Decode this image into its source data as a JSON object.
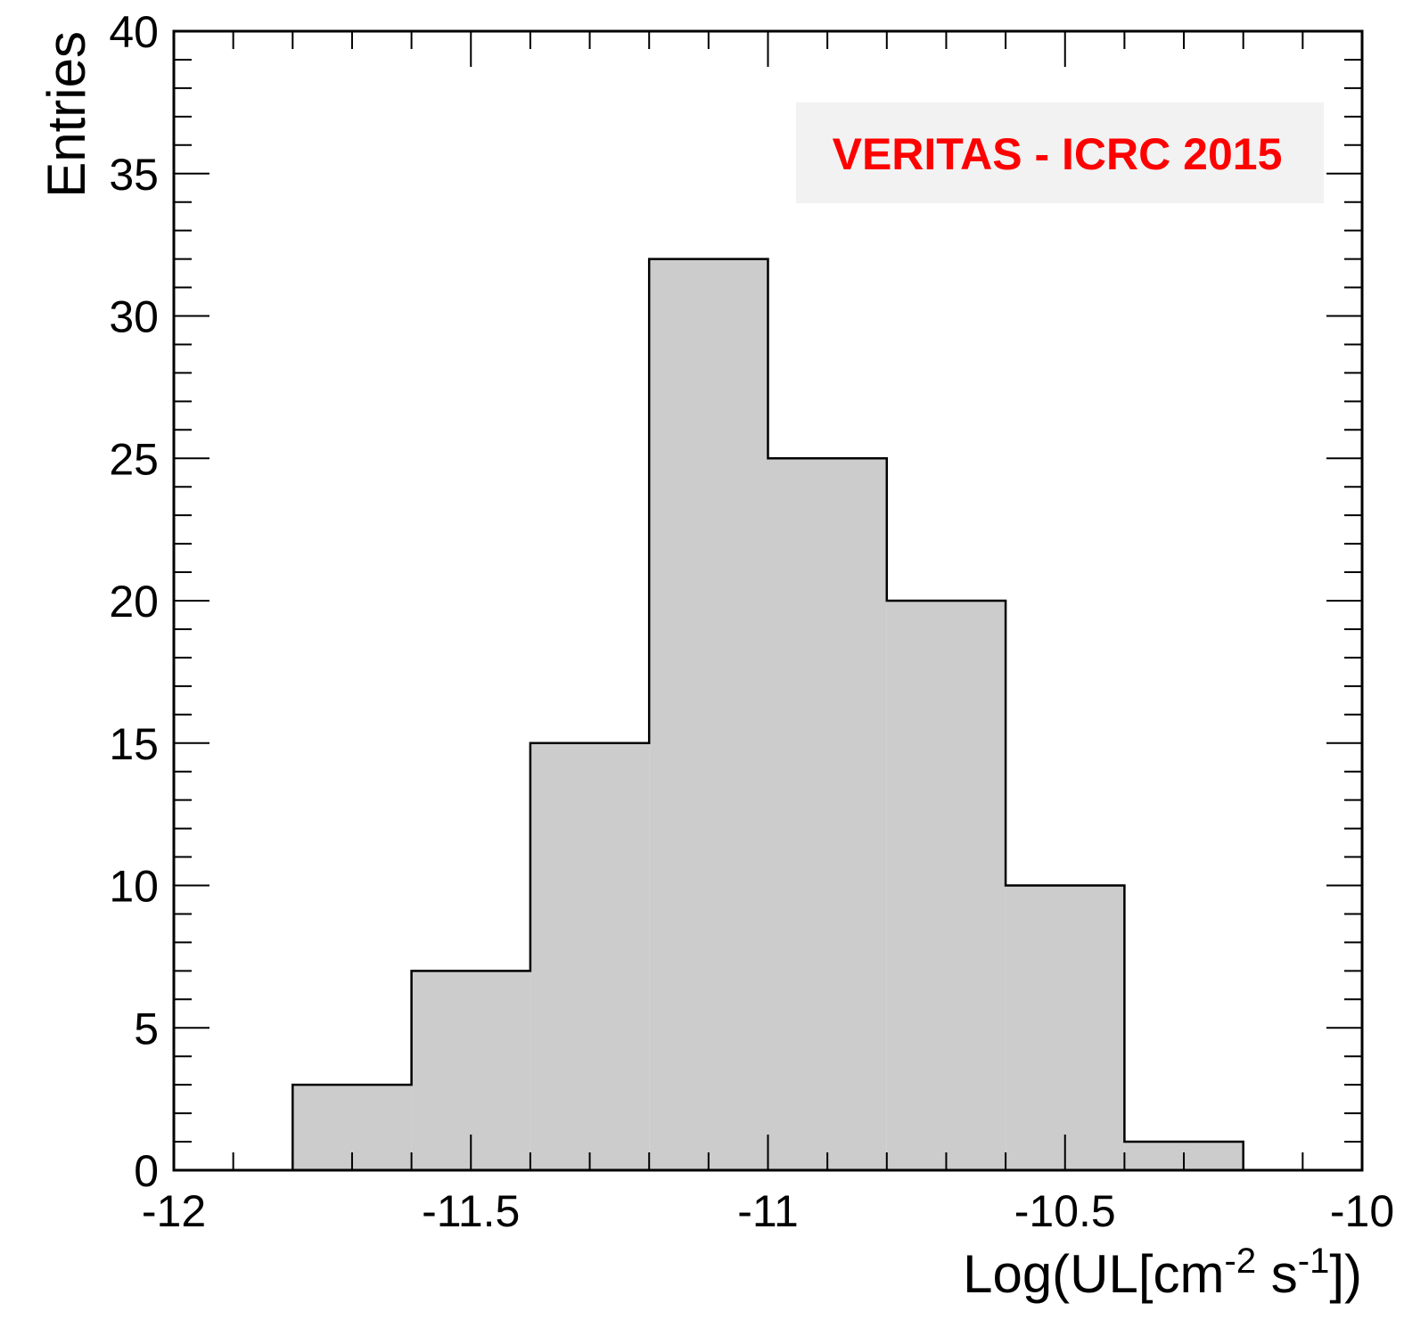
{
  "chart_data": {
    "type": "bar",
    "subtype": "histogram",
    "xlabel": {
      "base": "Log(UL[cm",
      "exp1": "-2",
      "mid": " s",
      "exp2": "-1",
      "end": "])"
    },
    "ylabel": "Entries",
    "xlim": [
      -12,
      -10
    ],
    "ylim": [
      0,
      40
    ],
    "bin_edges": [
      -11.8,
      -11.6,
      -11.4,
      -11.2,
      -11.0,
      -10.8,
      -10.6,
      -10.4,
      -10.2
    ],
    "values": [
      3,
      7,
      15,
      32,
      25,
      20,
      10,
      1
    ],
    "x_ticks": [
      "-12",
      "-11.5",
      "-11",
      "-10.5",
      "-10"
    ],
    "x_tick_values": [
      -12,
      -11.5,
      -11,
      -10.5,
      -10
    ],
    "y_ticks": [
      "0",
      "5",
      "10",
      "15",
      "20",
      "25",
      "30",
      "35",
      "40"
    ],
    "y_tick_values": [
      0,
      5,
      10,
      15,
      20,
      25,
      30,
      35,
      40
    ],
    "fill_color": "#cccccc",
    "line_color": "#000000",
    "grid": false,
    "annotation": {
      "text": "VERITAS - ICRC 2015",
      "color": "#ff0000",
      "background": "#f2f2f2",
      "placement": "top-right"
    }
  }
}
